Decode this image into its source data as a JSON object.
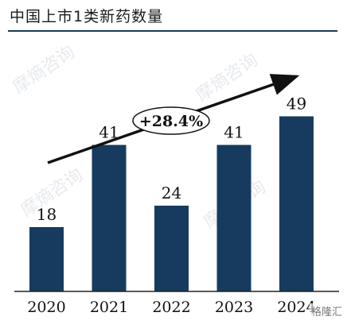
{
  "title": "中国上市1类新药数量",
  "watermark": "摩熵咨询",
  "corner_mark": "格隆汇",
  "chart_data": {
    "type": "bar",
    "categories": [
      "2020",
      "2021",
      "2022",
      "2023",
      "2024"
    ],
    "values": [
      18,
      41,
      24,
      41,
      49
    ],
    "ylim": [
      0,
      60
    ],
    "bar_color": "#173b5e",
    "trend_label": "+28.4%",
    "grid": false
  }
}
